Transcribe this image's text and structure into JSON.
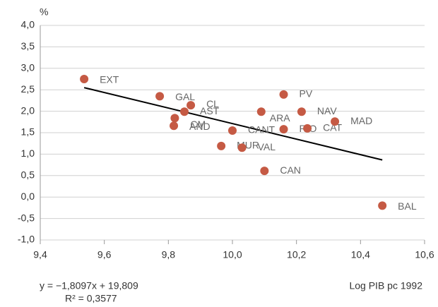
{
  "chart_data": {
    "type": "scatter",
    "y_label": "%",
    "x_label": "Log PIB pc 1992",
    "equation": "y = −1,8097x + 19,809",
    "r_squared": "R² = 0,3577",
    "trendline": {
      "slope": -1.8097,
      "intercept": 19.809,
      "color": "#000000"
    },
    "color": "#c55a44",
    "labels": [
      "EXT",
      "GAL",
      "CL",
      "AST",
      "CM",
      "AND",
      "CANT",
      "MUR",
      "VAL",
      "CAN",
      "ARA",
      "PV",
      "RIO",
      "NAV",
      "CAT",
      "MAD",
      "BAL"
    ],
    "x": [
      9.537,
      9.773,
      9.87,
      9.85,
      9.82,
      9.817,
      10.0,
      9.965,
      10.03,
      10.1,
      10.09,
      10.16,
      10.16,
      10.216,
      10.234,
      10.32,
      10.468
    ],
    "y": [
      2.75,
      2.35,
      2.14,
      1.99,
      1.84,
      1.66,
      1.55,
      1.19,
      1.15,
      0.61,
      1.99,
      2.39,
      1.58,
      1.99,
      1.6,
      1.76,
      -0.2
    ],
    "xlim": [
      9.4,
      10.6
    ],
    "xticks": [
      {
        "value": 9.4,
        "label": "9,4"
      },
      {
        "value": 9.6,
        "label": "9,6"
      },
      {
        "value": 9.8,
        "label": "9,8"
      },
      {
        "value": 10.0,
        "label": "10,0"
      },
      {
        "value": 10.2,
        "label": "10,2"
      },
      {
        "value": 10.4,
        "label": "10,4"
      },
      {
        "value": 10.6,
        "label": "10,6"
      }
    ],
    "ylim": [
      -1,
      4
    ],
    "yticks": [
      {
        "value": -1,
        "label": "-1,0"
      },
      {
        "value": -0.5,
        "label": "-0,5"
      },
      {
        "value": 0,
        "label": "0,0"
      },
      {
        "value": 0.5,
        "label": "0,5"
      },
      {
        "value": 1,
        "label": "1,0"
      },
      {
        "value": 1.5,
        "label": "1,5"
      },
      {
        "value": 2,
        "label": "2,0"
      },
      {
        "value": 2.5,
        "label": "2,5"
      },
      {
        "value": 3,
        "label": "3,0"
      },
      {
        "value": 3.5,
        "label": "3,5"
      },
      {
        "value": 4,
        "label": "4,0"
      }
    ],
    "grid": true
  }
}
